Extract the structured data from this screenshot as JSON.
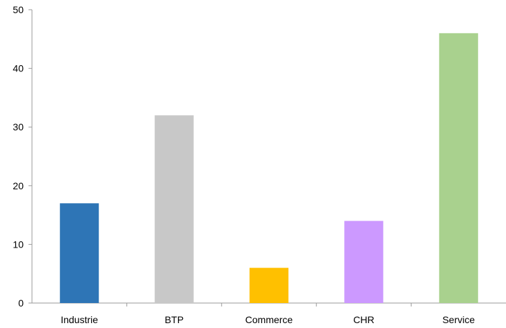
{
  "chart_data": {
    "type": "bar",
    "categories": [
      "Industrie",
      "BTP",
      "Commerce",
      "CHR",
      "Service"
    ],
    "values": [
      17,
      32,
      6,
      14,
      46
    ],
    "colors": [
      "#2e75b6",
      "#c8c8c8",
      "#ffc000",
      "#cc99ff",
      "#a9d18e"
    ],
    "yticks": [
      "0",
      "10",
      "20",
      "30",
      "40",
      "50"
    ],
    "ylim": [
      0,
      50
    ],
    "title": "",
    "xlabel": "",
    "ylabel": "",
    "grid": false,
    "legend": "none"
  }
}
